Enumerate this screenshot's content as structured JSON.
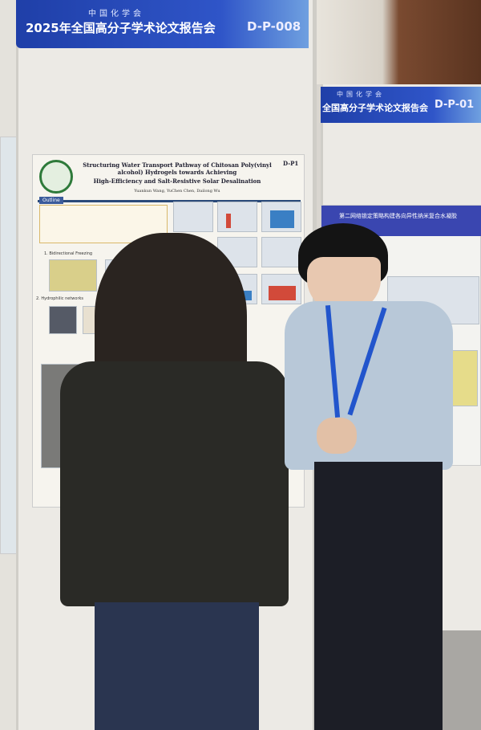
{
  "left_banner": {
    "org": "中国化学会",
    "event": "2025年全国高分子学术论文报告会",
    "code": "D-P-008"
  },
  "right_banner": {
    "org": "中国化学会",
    "event": "全国高分子学术论文报告会",
    "code": "D-P-01"
  },
  "poster_left": {
    "title_line1": "Structuring Water Transport Pathway of Chitosan Poly(vinyl alcohol) Hydrogels towards Achieving",
    "title_line2": "High-Efficiency and Salt-Resistive Solar Desalination",
    "authors": "Yuankun Wang, YuChen Chen, Dailong Wu",
    "code": "D-P1",
    "section_outline": "Outline",
    "section_1": "1. Bidirectional Freezing",
    "section_2": "2. Hydrophilic networks"
  },
  "poster_right": {
    "title": "第二网络锁定策略构建各向异性纳米复合水凝胶"
  },
  "colors": {
    "banner": "#2344b0",
    "board": "#eceae5",
    "sweater": "#2a2a26",
    "shirt": "#b8c8d8",
    "lanyard": "#2255cc"
  }
}
